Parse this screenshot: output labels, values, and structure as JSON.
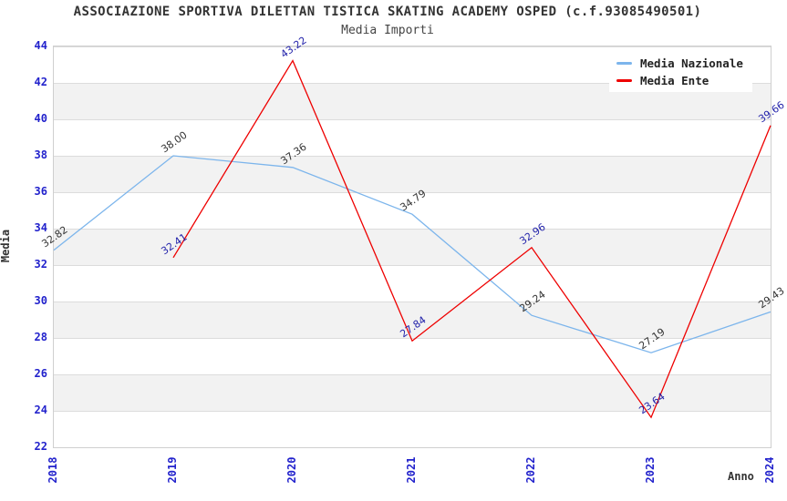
{
  "title": "ASSOCIAZIONE SPORTIVA DILETTAN TISTICA SKATING ACADEMY OSPED (c.f.93085490501)",
  "subtitle": "Media Importi",
  "chart_data": {
    "type": "line",
    "title": "ASSOCIAZIONE SPORTIVA DILETTAN TISTICA SKATING ACADEMY OSPED (c.f.93085490501)",
    "subtitle": "Media Importi",
    "xlabel": "Anno",
    "ylabel": "Media",
    "x_categories": [
      2018,
      2019,
      2020,
      2021,
      2022,
      2023,
      2024
    ],
    "ylim": [
      22,
      44
    ],
    "ytick_step": 2,
    "grid": "horizontal-bands",
    "legend_position": "top-right-inside",
    "series": [
      {
        "name": "Media Nazionale",
        "color": "#7CB5EC",
        "label_color": "#333333",
        "x": [
          2018,
          2019,
          2020,
          2021,
          2022,
          2023,
          2024
        ],
        "values": [
          32.82,
          38.0,
          37.36,
          34.79,
          29.24,
          27.19,
          29.43
        ]
      },
      {
        "name": "Media Ente",
        "color": "#EE0000",
        "label_color": "#2222AA",
        "x": [
          2019,
          2020,
          2021,
          2022,
          2023,
          2024
        ],
        "values": [
          32.41,
          43.22,
          27.84,
          32.96,
          23.64,
          39.66
        ]
      }
    ],
    "colors": {
      "tick_label": "#2222CC",
      "band_gray": "#F2F2F2",
      "gridline": "#DCDCDC",
      "plot_border": "#CFCFCF",
      "title_text": "#333333"
    }
  }
}
